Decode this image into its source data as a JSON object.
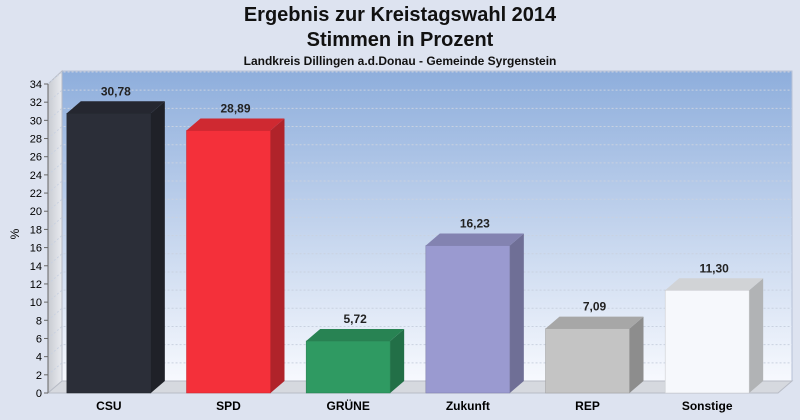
{
  "chart_data": {
    "type": "bar",
    "title": "Ergebnis zur Kreistagswahl 2014",
    "subtitle": "Stimmen in Prozent",
    "subtitle2": "Landkreis Dillingen a.d.Donau - Gemeinde Syrgenstein",
    "ylabel": "%",
    "ylim": [
      0,
      34
    ],
    "ytick_step": 2,
    "grid": true,
    "categories": [
      "CSU",
      "SPD",
      "GRÜNE",
      "Zukunft",
      "REP",
      "Sonstige"
    ],
    "values": [
      30.78,
      28.89,
      5.72,
      16.23,
      7.09,
      11.3
    ],
    "value_labels": [
      "30,78",
      "28,89",
      "5,72",
      "16,23",
      "7,09",
      "11,30"
    ],
    "colors": [
      "#2b2e38",
      "#f4303a",
      "#2f9a62",
      "#9a9ad0",
      "#c4c4c4",
      "#f6f8fc"
    ]
  }
}
